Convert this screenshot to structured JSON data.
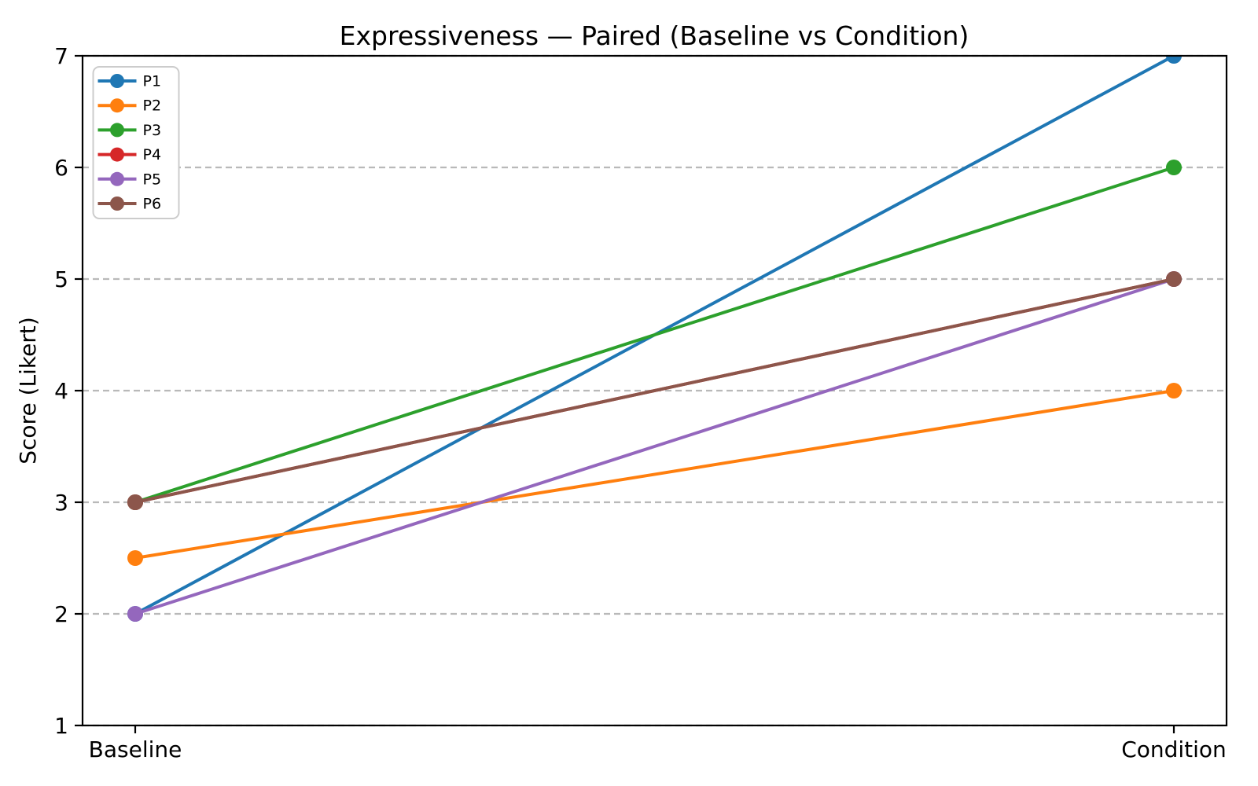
{
  "page": {
    "background": "#ffffff"
  },
  "chart_data": {
    "type": "line",
    "title": "Expressiveness — Paired (Baseline vs Condition)",
    "ylabel": "Score (Likert)",
    "xlabel": "",
    "categories": [
      "Baseline",
      "Condition"
    ],
    "yticks": [
      1,
      2,
      3,
      4,
      5,
      6,
      7
    ],
    "ylim": [
      1,
      7
    ],
    "grid": {
      "axis": "y",
      "style": "dashed",
      "color": "#b9b9b9"
    },
    "axis_color": "#000000",
    "legend": {
      "position": "upper-left",
      "border_color": "#cccccc",
      "background": "#ffffff"
    },
    "series": [
      {
        "name": "P1",
        "color": "#1f77b4",
        "values": [
          2,
          7
        ]
      },
      {
        "name": "P2",
        "color": "#ff7f0e",
        "values": [
          2.5,
          4
        ]
      },
      {
        "name": "P3",
        "color": "#2ca02c",
        "values": [
          3,
          6
        ]
      },
      {
        "name": "P4",
        "color": "#d62728",
        "values": [
          3,
          5
        ]
      },
      {
        "name": "P5",
        "color": "#9467bd",
        "values": [
          2,
          5
        ]
      },
      {
        "name": "P6",
        "color": "#8c564b",
        "values": [
          3,
          5
        ]
      }
    ]
  }
}
